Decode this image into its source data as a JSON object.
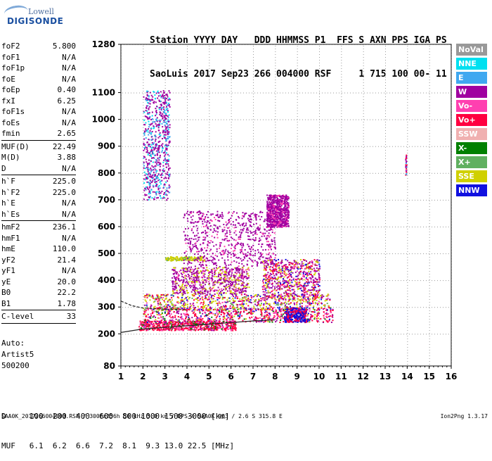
{
  "logo": {
    "line1": "Lowell",
    "line2": "DIGISONDE"
  },
  "header": {
    "line1": "Station YYYY DAY   DDD HHMMSS P1  FFS S AXN PPS IGA PS",
    "line2": "SaoLuis 2017 Sep23 266 004000 RSF     1 715 100 00- 11"
  },
  "params": [
    {
      "name": "foF2",
      "value": "5.800"
    },
    {
      "name": "foF1",
      "value": "N/A"
    },
    {
      "name": "foF1p",
      "value": "N/A"
    },
    {
      "name": "foE",
      "value": "N/A"
    },
    {
      "name": "foEp",
      "value": "0.40"
    },
    {
      "name": "fxI",
      "value": "6.25"
    },
    {
      "name": "foF1s",
      "value": "N/A"
    },
    {
      "name": "foEs",
      "value": "N/A"
    },
    {
      "name": "fmin",
      "value": "2.65"
    },
    {
      "sep": true
    },
    {
      "name": "MUF(D)",
      "value": "22.49"
    },
    {
      "name": "M(D)",
      "value": "3.88"
    },
    {
      "name": "D",
      "value": "N/A"
    },
    {
      "sep": true
    },
    {
      "name": "h`F",
      "value": "225.0"
    },
    {
      "name": "h`F2",
      "value": "225.0"
    },
    {
      "name": "h`E",
      "value": "N/A"
    },
    {
      "name": "h`Es",
      "value": "N/A"
    },
    {
      "sep": true
    },
    {
      "name": "hmF2",
      "value": "236.1"
    },
    {
      "name": "hmF1",
      "value": "N/A"
    },
    {
      "name": "hmE",
      "value": "110.0"
    },
    {
      "name": "yF2",
      "value": "21.4"
    },
    {
      "name": "yF1",
      "value": "N/A"
    },
    {
      "name": "yE",
      "value": "20.0"
    },
    {
      "name": "B0",
      "value": "22.2"
    },
    {
      "name": "B1",
      "value": "1.78"
    },
    {
      "sep": true
    },
    {
      "name": "C-level",
      "value": "33"
    },
    {
      "sep": true
    }
  ],
  "auto": [
    "Auto:",
    "Artist5",
    "500200"
  ],
  "dmuf": {
    "d_row": "D     100  200  400  600  800 1000 1500 3000 [km]",
    "muf_row": "MUF   6.1  6.2  6.6  7.2  8.1  9.3 13.0 22.5 [MHz]"
  },
  "footer": "SAA0K_2017266004000.RSF / 300fx256h 50 kHz 5.0 km / DPS-4 SAA0K 903 / 2.6 S 315.8 E",
  "version": "Ion2Png 1.3.17",
  "legend": [
    {
      "label": "NoVal",
      "color": "#999999"
    },
    {
      "label": "NNE",
      "color": "#00e0f0"
    },
    {
      "label": "E",
      "color": "#40a8f0"
    },
    {
      "label": "W",
      "color": "#a000a0"
    },
    {
      "label": "Vo-",
      "color": "#ff40b0"
    },
    {
      "label": "Vo+",
      "color": "#ff0040"
    },
    {
      "label": "SSW",
      "color": "#f0b0b0"
    },
    {
      "label": "X-",
      "color": "#008000"
    },
    {
      "label": "X+",
      "color": "#60b060"
    },
    {
      "label": "SSE",
      "color": "#d0d000"
    },
    {
      "label": "NNW",
      "color": "#1010e0"
    }
  ],
  "chart_data": {
    "type": "scatter",
    "xlim": [
      1,
      16
    ],
    "ylim": [
      80,
      1280
    ],
    "x_ticks": [
      "1",
      "2",
      "3",
      "4",
      "5",
      "6",
      "7",
      "8",
      "9",
      "10",
      "11",
      "12",
      "13",
      "14",
      "15",
      "16"
    ],
    "y_ticks": [
      "80",
      "200",
      "300",
      "400",
      "500",
      "600",
      "700",
      "800",
      "900",
      "1000",
      "1100",
      "1280"
    ],
    "grid": true,
    "clusters": [
      {
        "freq": [
          1.8,
          6.2
        ],
        "height": [
          215,
          250
        ],
        "weights": {
          "Vo+": 5,
          "Vo-": 2,
          "X-": 1,
          "W": 1
        }
      },
      {
        "freq": [
          2.0,
          10.6
        ],
        "height": [
          245,
          300
        ],
        "weights": {
          "Vo+": 5,
          "Vo-": 3,
          "W": 2,
          "X-": 1,
          "SSE": 1,
          "NNW": 1
        }
      },
      {
        "freq": [
          8.4,
          9.4
        ],
        "height": [
          245,
          300
        ],
        "weights": {
          "NNW": 4,
          "Vo+": 2
        }
      },
      {
        "freq": [
          2.0,
          10.5
        ],
        "height": [
          290,
          350
        ],
        "weights": {
          "SSE": 4,
          "W": 2,
          "Vo+": 2,
          "Vo-": 1,
          "X+": 1,
          "NNW": 1
        }
      },
      {
        "freq": [
          3.3,
          6.8
        ],
        "height": [
          350,
          450
        ],
        "weights": {
          "W": 5,
          "SSE": 2,
          "Vo-": 1
        }
      },
      {
        "freq": [
          7.4,
          10.0
        ],
        "height": [
          330,
          480
        ],
        "weights": {
          "W": 4,
          "Vo+": 2,
          "SSE": 2,
          "Vo-": 1,
          "NNW": 1
        }
      },
      {
        "freq": [
          3.0,
          4.8
        ],
        "height": [
          475,
          490
        ],
        "weights": {
          "SSE": 4,
          "X+": 1
        }
      },
      {
        "freq": [
          3.8,
          8.0
        ],
        "height": [
          450,
          660
        ],
        "weights": {
          "W": 6,
          "Vo-": 1
        }
      },
      {
        "freq": [
          7.6,
          8.6
        ],
        "height": [
          600,
          720
        ],
        "weights": {
          "W": 4,
          "Vo-": 1
        }
      },
      {
        "freq": [
          2.0,
          3.2
        ],
        "height": [
          700,
          1110
        ],
        "weights": {
          "W": 3,
          "NNE": 1,
          "E": 1
        }
      },
      {
        "freq": [
          13.9,
          13.95
        ],
        "height": [
          795,
          870
        ],
        "weights": {
          "W": 1,
          "E": 1,
          "Vo+": 1
        }
      }
    ],
    "traces": [
      {
        "name": "low trace",
        "x": [
          1,
          2,
          4,
          6,
          7,
          8
        ],
        "y": [
          205,
          218,
          230,
          242,
          248,
          252
        ]
      },
      {
        "name": "high trace",
        "x": [
          1,
          1.5,
          2,
          3,
          4
        ],
        "y": [
          322,
          305,
          296,
          292,
          290
        ]
      }
    ]
  }
}
